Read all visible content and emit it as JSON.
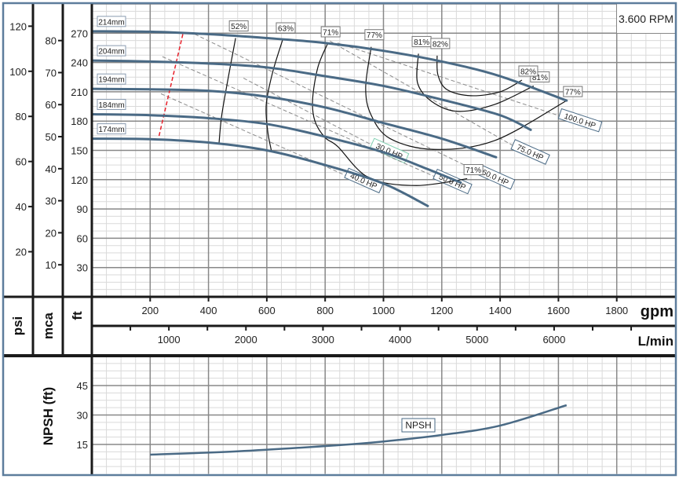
{
  "chart_data": {
    "type": "line",
    "speed_label": "3.600 RPM",
    "x_axis": {
      "label": "gpm",
      "range": [
        0,
        2000
      ],
      "ticks": [
        200,
        400,
        600,
        800,
        1000,
        1200,
        1400,
        1600,
        1800
      ]
    },
    "x2_axis": {
      "label": "L/min",
      "ticks": [
        1000,
        2000,
        3000,
        4000,
        5000,
        6000
      ],
      "minor_step": 500
    },
    "y_axes": {
      "ft": {
        "label": "ft",
        "range": [
          0,
          300
        ],
        "ticks": [
          30,
          60,
          90,
          120,
          150,
          180,
          210,
          240,
          270
        ]
      },
      "psi": {
        "label": "psi",
        "ticks": [
          20,
          40,
          60,
          80,
          100,
          120
        ]
      },
      "mca": {
        "label": "mca",
        "ticks": [
          10,
          20,
          30,
          40,
          50,
          60,
          70,
          80
        ]
      }
    },
    "impeller_curves": [
      {
        "label": "214mm",
        "points": [
          [
            0,
            272
          ],
          [
            200,
            271.5
          ],
          [
            400,
            269
          ],
          [
            600,
            265
          ],
          [
            800,
            260
          ],
          [
            1000,
            252
          ],
          [
            1200,
            241
          ],
          [
            1400,
            226
          ],
          [
            1628,
            201
          ]
        ]
      },
      {
        "label": "204mm",
        "points": [
          [
            0,
            242
          ],
          [
            200,
            241
          ],
          [
            400,
            239
          ],
          [
            600,
            235
          ],
          [
            800,
            226
          ],
          [
            1000,
            216
          ],
          [
            1200,
            202
          ],
          [
            1400,
            186
          ],
          [
            1505,
            171
          ]
        ]
      },
      {
        "label": "194mm",
        "points": [
          [
            0,
            213
          ],
          [
            200,
            212.5
          ],
          [
            400,
            211
          ],
          [
            600,
            205
          ],
          [
            800,
            194
          ],
          [
            1000,
            178
          ],
          [
            1200,
            162
          ],
          [
            1386,
            143
          ]
        ]
      },
      {
        "label": "184mm",
        "points": [
          [
            0,
            187
          ],
          [
            200,
            186
          ],
          [
            400,
            183
          ],
          [
            600,
            177
          ],
          [
            800,
            164
          ],
          [
            1000,
            148
          ],
          [
            1150,
            131
          ],
          [
            1265,
            117
          ]
        ]
      },
      {
        "label": "174mm",
        "points": [
          [
            0,
            162
          ],
          [
            200,
            161.5
          ],
          [
            400,
            158
          ],
          [
            600,
            150
          ],
          [
            800,
            135
          ],
          [
            1000,
            116
          ],
          [
            1152,
            93
          ]
        ]
      }
    ],
    "efficiency_curves": [
      {
        "label": "52%",
        "labels_at": [
          "start"
        ],
        "points": [
          [
            493,
            265
          ],
          [
            465,
            220
          ],
          [
            445,
            185
          ],
          [
            436,
            157
          ]
        ]
      },
      {
        "label": "63%",
        "labels_at": [
          "start"
        ],
        "points": [
          [
            654,
            263
          ],
          [
            620,
            230
          ],
          [
            598,
            197
          ],
          [
            603,
            170
          ],
          [
            616,
            149
          ]
        ]
      },
      {
        "label": "71%",
        "labels_at": [
          "start",
          "end"
        ],
        "points": [
          [
            808,
            259
          ],
          [
            775,
            235
          ],
          [
            757,
            202
          ],
          [
            765,
            180
          ],
          [
            800,
            163
          ],
          [
            843,
            154
          ],
          [
            950,
            122
          ],
          [
            1112,
            114
          ],
          [
            1287,
            121
          ]
        ]
      },
      {
        "label": "77%",
        "labels_at": [
          "start",
          "end"
        ],
        "points": [
          [
            958,
            256
          ],
          [
            939,
            214
          ],
          [
            958,
            186
          ],
          [
            1023,
            162
          ],
          [
            1173,
            151
          ],
          [
            1381,
            160
          ],
          [
            1628,
            201
          ]
        ]
      },
      {
        "label": "81%",
        "labels_at": [
          "start",
          "end"
        ],
        "points": [
          [
            1120,
            249
          ],
          [
            1117,
            219
          ],
          [
            1166,
            200
          ],
          [
            1254,
            190
          ],
          [
            1381,
            197
          ],
          [
            1515,
            216
          ]
        ]
      },
      {
        "label": "82%",
        "labels_at": [
          "start",
          "end"
        ],
        "points": [
          [
            1184,
            247
          ],
          [
            1187,
            227
          ],
          [
            1219,
            212
          ],
          [
            1300,
            206
          ],
          [
            1400,
            210
          ],
          [
            1475,
            222
          ]
        ]
      }
    ],
    "power_lines": [
      {
        "label": "30.0 HP",
        "points": [
          [
            520,
            224
          ],
          [
            977,
            153
          ]
        ]
      },
      {
        "label": "40.0 HP",
        "points": [
          [
            237,
            208
          ],
          [
            888,
            122
          ]
        ]
      },
      {
        "label": "50.0 HP",
        "points": [
          [
            242,
            246
          ],
          [
            1192,
            121
          ]
        ]
      },
      {
        "label": "60.0 HP",
        "points": [
          [
            353,
            269
          ],
          [
            1340,
            126
          ]
        ]
      },
      {
        "label": "75.0 HP",
        "points": [
          [
            816,
            262
          ],
          [
            1461,
            152
          ]
        ]
      },
      {
        "label": "100.0 HP",
        "points": [
          [
            843,
            260
          ],
          [
            1628,
            183
          ]
        ]
      }
    ],
    "min_flow_line": {
      "points": [
        [
          312,
          269
        ],
        [
          229,
          163
        ]
      ]
    },
    "npsh": {
      "axis_label": "NPSH (ft)",
      "range": [
        0,
        60
      ],
      "ticks": [
        15,
        30,
        45
      ],
      "label": "NPSH",
      "points": [
        [
          200,
          9.8
        ],
        [
          500,
          11.5
        ],
        [
          843,
          14.6
        ],
        [
          1000,
          16.5
        ],
        [
          1198,
          19.8
        ],
        [
          1400,
          24.6
        ],
        [
          1628,
          35
        ]
      ]
    },
    "colors": {
      "curve": "#4a6a85",
      "efficiency": "#111111",
      "power": "#8a8a8a",
      "min_flow": "#e8202a",
      "frame": "#5d7d9c"
    }
  }
}
